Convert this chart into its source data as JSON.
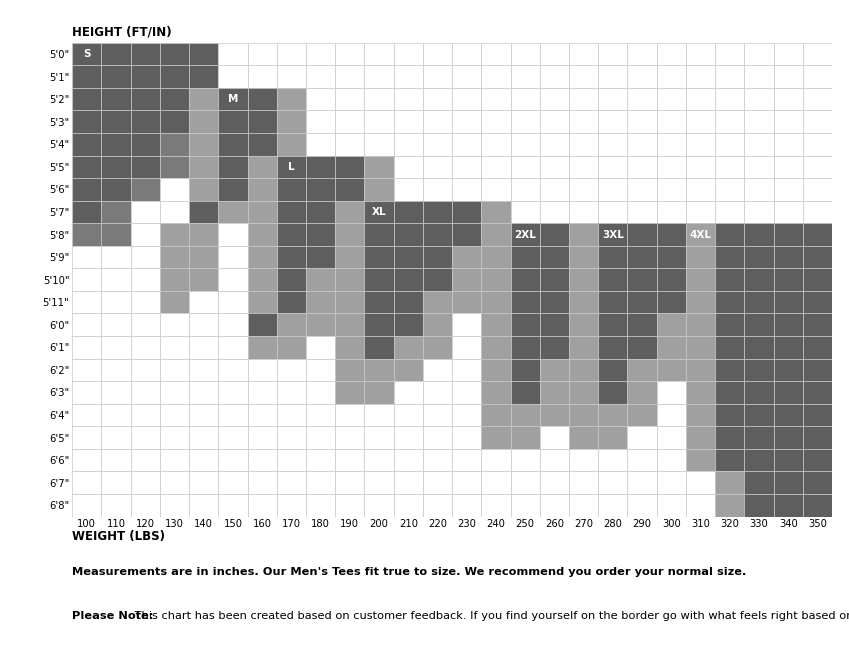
{
  "ylabel": "HEIGHT (FT/IN)",
  "xlabel": "WEIGHT (LBS)",
  "heights": [
    "5'0\"",
    "5'1\"",
    "5'2\"",
    "5'3\"",
    "5'4\"",
    "5'5\"",
    "5'6\"",
    "5'7\"",
    "5'8\"",
    "5'9\"",
    "5'10\"",
    "5'11\"",
    "6'0\"",
    "6'1\"",
    "6'2\"",
    "6'3\"",
    "6'4\"",
    "6'5\"",
    "6'6\"",
    "6'7\"",
    "6'8\""
  ],
  "weights": [
    "100",
    "110",
    "120",
    "130",
    "140",
    "150",
    "160",
    "170",
    "180",
    "190",
    "200",
    "210",
    "220",
    "230",
    "240",
    "250",
    "260",
    "270",
    "280",
    "290",
    "300",
    "310",
    "320",
    "330",
    "340",
    "350"
  ],
  "grid_color": "#c8c8c8",
  "note1": "Measurements are in inches. Our Men's Tees fit true to size. We recommend you order your normal size.",
  "note2_bold": "Please Note:",
  "note2_rest": " This chart has been created based on customer feedback. If you find yourself on the border go with what feels right based on your fit preference.",
  "WHITE": "#ffffff",
  "C_DARK": "#5e5e5e",
  "C_MID": "#7a7a7a",
  "C_LIGHT": "#a0a0a0",
  "size_label_entries": [
    {
      "label": "S",
      "row": 0,
      "col": 0
    },
    {
      "label": "M",
      "row": 2,
      "col": 5
    },
    {
      "label": "L",
      "row": 5,
      "col": 7
    },
    {
      "label": "XL",
      "row": 7,
      "col": 10
    },
    {
      "label": "2XL",
      "row": 8,
      "col": 15
    },
    {
      "label": "3XL",
      "row": 8,
      "col": 18
    },
    {
      "label": "4XL",
      "row": 8,
      "col": 21
    }
  ]
}
